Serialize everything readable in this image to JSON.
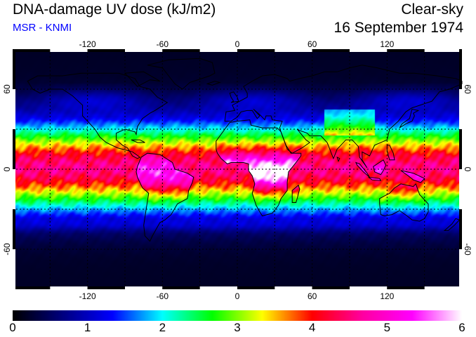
{
  "header": {
    "title": "DNA-damage UV dose (kJ/m2)",
    "credit": "MSR - KNMI",
    "condition": "Clear-sky",
    "date": "16 September 1974"
  },
  "map": {
    "projection": "equirectangular",
    "lon_range": [
      -180,
      180
    ],
    "lat_range": [
      -90,
      90
    ],
    "gridlines": "dotted",
    "lon_ticks": [
      -120,
      -60,
      0,
      60,
      120
    ],
    "lat_ticks": [
      60,
      0,
      -60
    ],
    "lon_tick_labels": [
      "-120",
      "-60",
      "0",
      "60",
      "120"
    ],
    "lat_tick_labels": [
      "60",
      "0",
      "-60"
    ]
  },
  "colorbar": {
    "min": 0,
    "max": 6,
    "labels": [
      "0",
      "1",
      "2",
      "3",
      "4",
      "5",
      "6"
    ],
    "stops": [
      "#000000",
      "#00007f",
      "#0000ff",
      "#00ffff",
      "#00ff00",
      "#ffff00",
      "#ff0000",
      "#ff00a0",
      "#ff00ff",
      "#ffffff"
    ]
  }
}
